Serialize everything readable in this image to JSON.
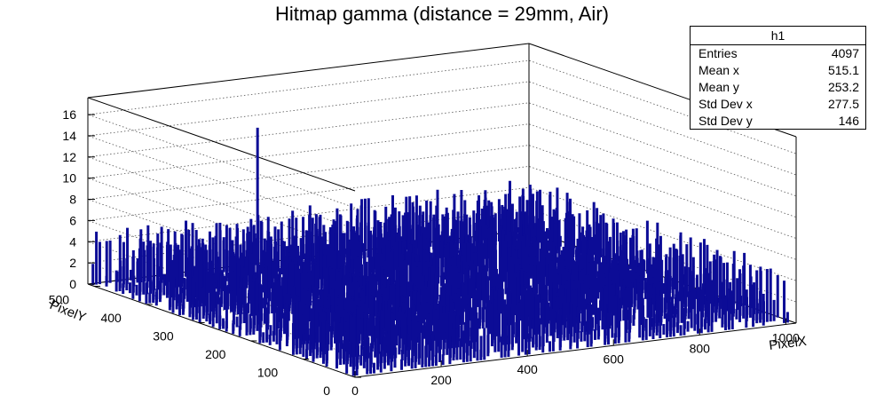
{
  "title": "Hitmap gamma (distance = 29mm, Air)",
  "colors": {
    "bars": "#0c0c96",
    "axis": "#000000",
    "grid": "#555555",
    "background": "#ffffff"
  },
  "stats": {
    "name": "h1",
    "rows": [
      {
        "label": "Entries",
        "value": "4097"
      },
      {
        "label": "Mean x",
        "value": "515.1"
      },
      {
        "label": "Mean y",
        "value": "253.2"
      },
      {
        "label": "Std Dev x",
        "value": "277.5"
      },
      {
        "label": "Std Dev y",
        "value": "146"
      }
    ]
  },
  "chart_data": {
    "type": "lego2d",
    "title": "Hitmap gamma (distance = 29mm, Air)",
    "xlabel": "PixelX",
    "ylabel": "PixelY",
    "zlabel": "",
    "xlim": [
      0,
      1024
    ],
    "ylim": [
      0,
      512
    ],
    "zlim": [
      0,
      17.6
    ],
    "xticks": [
      0,
      200,
      400,
      600,
      800,
      1000
    ],
    "yticks": [
      0,
      100,
      200,
      300,
      400,
      500
    ],
    "zticks": [
      0,
      2,
      4,
      6,
      8,
      10,
      12,
      14,
      16
    ],
    "grid": true,
    "entries": 4097,
    "bin_content_typical_range": [
      1,
      5
    ],
    "peaks": [
      {
        "x": 383,
        "y": 503,
        "z": 13
      },
      {
        "x": 946,
        "y": 332,
        "z": 4
      },
      {
        "x": 861,
        "y": 198,
        "z": 4
      }
    ]
  }
}
